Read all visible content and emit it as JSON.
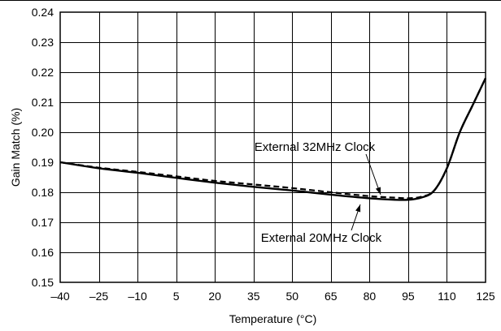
{
  "chart_data": {
    "type": "line",
    "title": "",
    "xlabel": "Temperature (°C)",
    "ylabel": "Gain Match (%)",
    "xlim": [
      -40,
      125
    ],
    "ylim": [
      0.15,
      0.24
    ],
    "x_ticks": [
      -40,
      -25,
      -10,
      5,
      20,
      35,
      50,
      65,
      80,
      95,
      110,
      125
    ],
    "x_tick_labels": [
      "–40",
      "–25",
      "–10",
      "5",
      "20",
      "35",
      "50",
      "65",
      "80",
      "95",
      "110",
      "125"
    ],
    "y_ticks": [
      0.15,
      0.16,
      0.17,
      0.18,
      0.19,
      0.2,
      0.21,
      0.22,
      0.23,
      0.24
    ],
    "y_tick_labels": [
      "0.15",
      "0.16",
      "0.17",
      "0.18",
      "0.19",
      "0.20",
      "0.21",
      "0.22",
      "0.23",
      "0.24"
    ],
    "grid": true,
    "series": [
      {
        "name": "External 20MHz Clock",
        "style": "solid",
        "color": "#000000",
        "x": [
          -40,
          -25,
          -10,
          5,
          20,
          35,
          50,
          65,
          80,
          90,
          95,
          100,
          105,
          110,
          115,
          120,
          125
        ],
        "y": [
          0.19,
          0.188,
          0.1865,
          0.1848,
          0.1832,
          0.1818,
          0.1806,
          0.1792,
          0.178,
          0.1775,
          0.1775,
          0.1782,
          0.1805,
          0.188,
          0.2,
          0.209,
          0.218
        ]
      },
      {
        "name": "External 32MHz Clock",
        "style": "dashed",
        "color": "#000000",
        "x": [
          -40,
          -25,
          -10,
          5,
          20,
          35,
          50,
          65,
          80,
          90,
          95,
          100,
          105,
          110,
          115,
          120,
          125
        ],
        "y": [
          0.19,
          0.1882,
          0.1868,
          0.1853,
          0.1838,
          0.1826,
          0.1814,
          0.18,
          0.1787,
          0.1782,
          0.178,
          0.1785,
          0.1805,
          0.188,
          0.2,
          0.209,
          0.218
        ]
      }
    ],
    "annotations": [
      {
        "text": "External 32MHz Clock",
        "series": "External 32MHz Clock"
      },
      {
        "text": "External 20MHz Clock",
        "series": "External 20MHz Clock"
      }
    ]
  }
}
